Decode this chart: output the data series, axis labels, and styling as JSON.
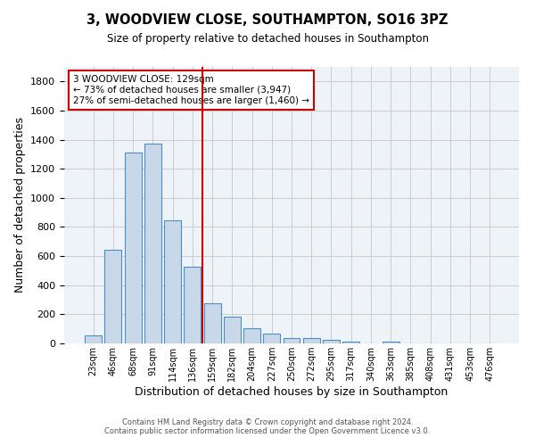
{
  "title_line1": "3, WOODVIEW CLOSE, SOUTHAMPTON, SO16 3PZ",
  "title_line2": "Size of property relative to detached houses in Southampton",
  "xlabel": "Distribution of detached houses by size in Southampton",
  "ylabel": "Number of detached properties",
  "bar_labels": [
    "23sqm",
    "46sqm",
    "68sqm",
    "91sqm",
    "114sqm",
    "136sqm",
    "159sqm",
    "182sqm",
    "204sqm",
    "227sqm",
    "250sqm",
    "272sqm",
    "295sqm",
    "317sqm",
    "340sqm",
    "363sqm",
    "385sqm",
    "408sqm",
    "431sqm",
    "453sqm",
    "476sqm"
  ],
  "bar_values": [
    55,
    645,
    1310,
    1375,
    845,
    530,
    275,
    185,
    103,
    65,
    38,
    35,
    22,
    10,
    0,
    12,
    0,
    0,
    0,
    0,
    0
  ],
  "bar_color": "#c8d8e8",
  "bar_edge_color": "#4a90c4",
  "grid_color": "#cccccc",
  "bg_color": "#eef3f8",
  "vline_x": 5.5,
  "vline_color": "#cc0000",
  "annotation_text": "3 WOODVIEW CLOSE: 129sqm\n← 73% of detached houses are smaller (3,947)\n27% of semi-detached houses are larger (1,460) →",
  "annotation_box_color": "#ffffff",
  "annotation_box_edge": "#cc0000",
  "ylim": [
    0,
    1900
  ],
  "yticks": [
    0,
    200,
    400,
    600,
    800,
    1000,
    1200,
    1400,
    1600,
    1800
  ],
  "footer_line1": "Contains HM Land Registry data © Crown copyright and database right 2024.",
  "footer_line2": "Contains public sector information licensed under the Open Government Licence v3.0."
}
